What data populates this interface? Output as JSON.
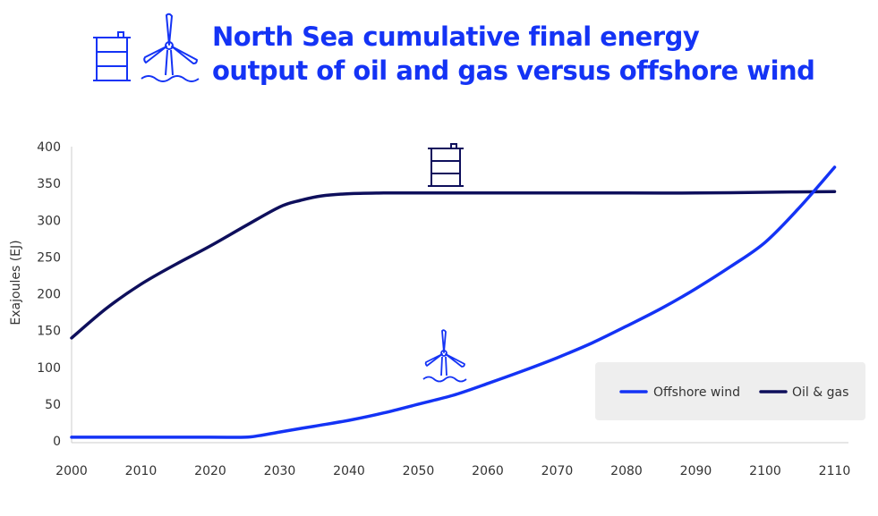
{
  "title_lines": [
    "North Sea cumulative final energy",
    "output of oil and gas versus offshore wind"
  ],
  "icons": {
    "header_left": "oil-barrel-icon",
    "header_right": "wind-turbine-icon",
    "annotation_oil": "oil-barrel-icon",
    "annotation_wind": "wind-turbine-icon"
  },
  "colors": {
    "title": "#1433f5",
    "offshore_wind": "#1433f5",
    "oil_gas": "#0e0f5c",
    "legend_bg": "#eeeeee",
    "axis": "#cccccc"
  },
  "chart_data": {
    "type": "line",
    "title": "North Sea cumulative final energy output of oil and gas versus offshore wind",
    "xlabel": "",
    "ylabel": "Exajoules (EJ)",
    "xlim": [
      2000,
      2112
    ],
    "ylim": [
      0,
      400
    ],
    "xticks": [
      2000,
      2010,
      2020,
      2030,
      2040,
      2050,
      2060,
      2070,
      2080,
      2090,
      2100,
      2110
    ],
    "yticks": [
      0,
      50,
      100,
      150,
      200,
      250,
      300,
      350,
      400
    ],
    "grid": false,
    "legend_position": "bottom-right",
    "series": [
      {
        "name": "Offshore wind",
        "x": [
          2000,
          2010,
          2020,
          2025,
          2027,
          2030,
          2035,
          2040,
          2045,
          2050,
          2055,
          2060,
          2065,
          2070,
          2075,
          2080,
          2085,
          2090,
          2095,
          2100,
          2105,
          2110
        ],
        "y": [
          5,
          5,
          5,
          5,
          7,
          12,
          20,
          28,
          38,
          50,
          62,
          78,
          95,
          113,
          133,
          156,
          180,
          207,
          237,
          270,
          318,
          372
        ]
      },
      {
        "name": "Oil & gas",
        "x": [
          2000,
          2005,
          2010,
          2015,
          2020,
          2025,
          2030,
          2033,
          2036,
          2040,
          2045,
          2050,
          2060,
          2070,
          2080,
          2090,
          2100,
          2110
        ],
        "y": [
          140,
          180,
          213,
          240,
          265,
          292,
          318,
          327,
          333,
          336,
          337,
          337,
          337,
          337,
          337,
          337,
          338,
          339
        ]
      }
    ]
  }
}
